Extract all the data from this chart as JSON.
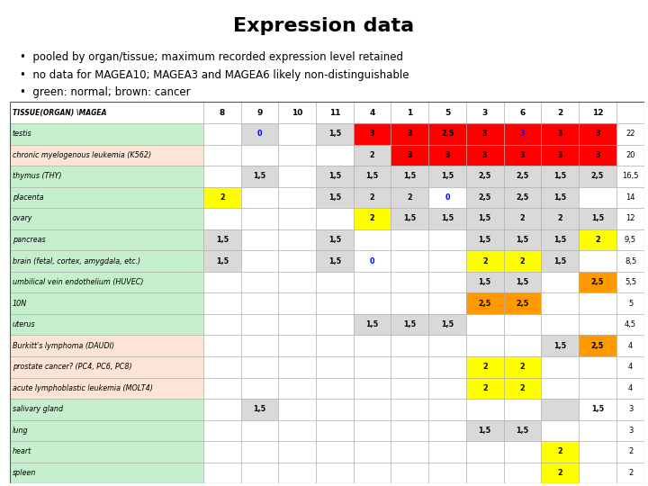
{
  "title": "Expression data",
  "bullets": [
    "pooled by organ/tissue; maximum recorded expression level retained",
    "no data for MAGEA10; MAGEA3 and MAGEA6 likely non-distinguishable",
    "green: normal; brown: cancer"
  ],
  "col_headers_label": "TISSUE(ORGAN) \\MAGEA",
  "data_cols": [
    "8",
    "9",
    "10",
    "11",
    "4",
    "1",
    "5",
    "3",
    "6",
    "2",
    "12"
  ],
  "rows": [
    {
      "tissue": "testis",
      "bg": "#c6efce",
      "values": {
        "8": null,
        "9": "0",
        "10": null,
        "11": "1,5",
        "4": "3",
        "1": "3",
        "5": "2,5",
        "3": "3",
        "6": "3",
        "2": "3",
        "12": "3"
      },
      "cell_colors": {
        "9": "#d9d9d9",
        "11": "#d9d9d9",
        "4": "#ff0000",
        "1": "#ff0000",
        "5": "#ff0000",
        "3": "#ff0000",
        "6": "#ff0000",
        "2": "#ff0000",
        "12": "#ff0000"
      },
      "cell_text_colors": {
        "9": "#0000ff",
        "6": "#0000ff"
      },
      "sum": "22"
    },
    {
      "tissue": "chronic myelogenous leukemia (K562)",
      "bg": "#fce4d6",
      "values": {
        "8": null,
        "9": null,
        "10": null,
        "11": null,
        "4": "2",
        "1": "3",
        "5": "3",
        "3": "3",
        "6": "3",
        "2": "3",
        "12": "3"
      },
      "cell_colors": {
        "4": "#d9d9d9",
        "1": "#ff0000",
        "5": "#ff0000",
        "3": "#ff0000",
        "6": "#ff0000",
        "2": "#ff0000",
        "12": "#ff0000"
      },
      "cell_text_colors": {},
      "sum": "20"
    },
    {
      "tissue": "thymus (THY)",
      "bg": "#c6efce",
      "values": {
        "8": null,
        "9": "1,5",
        "10": null,
        "11": "1,5",
        "4": "1,5",
        "1": "1,5",
        "5": "1,5",
        "3": "2,5",
        "6": "2,5",
        "2": "1,5",
        "12": "2,5"
      },
      "cell_colors": {
        "9": "#d9d9d9",
        "11": "#d9d9d9",
        "4": "#d9d9d9",
        "1": "#d9d9d9",
        "5": "#d9d9d9",
        "3": "#d9d9d9",
        "6": "#d9d9d9",
        "2": "#d9d9d9",
        "12": "#d9d9d9"
      },
      "cell_text_colors": {},
      "sum": "16,5"
    },
    {
      "tissue": "placenta",
      "bg": "#c6efce",
      "values": {
        "8": "2",
        "9": null,
        "10": null,
        "11": "1,5",
        "4": "2",
        "1": "2",
        "5": "0",
        "3": "2,5",
        "6": "2,5",
        "2": "1,5",
        "12": null
      },
      "cell_colors": {
        "8": "#ffff00",
        "11": "#d9d9d9",
        "4": "#d9d9d9",
        "1": "#d9d9d9",
        "3": "#d9d9d9",
        "6": "#d9d9d9",
        "2": "#d9d9d9"
      },
      "cell_text_colors": {
        "5": "#0000ff"
      },
      "sum": "14"
    },
    {
      "tissue": "ovary",
      "bg": "#c6efce",
      "values": {
        "8": null,
        "9": null,
        "10": null,
        "11": null,
        "4": "2",
        "1": "1,5",
        "5": "1,5",
        "3": "1,5",
        "6": "2",
        "2": "2",
        "12": "1,5"
      },
      "cell_colors": {
        "4": "#ffff00",
        "1": "#d9d9d9",
        "5": "#d9d9d9",
        "3": "#d9d9d9",
        "6": "#d9d9d9",
        "2": "#d9d9d9",
        "12": "#d9d9d9"
      },
      "cell_text_colors": {},
      "sum": "12"
    },
    {
      "tissue": "pancreas",
      "bg": "#c6efce",
      "values": {
        "8": "1,5",
        "9": null,
        "10": null,
        "11": "1,5",
        "4": null,
        "1": null,
        "5": null,
        "3": "1,5",
        "6": "1,5",
        "2": "1,5",
        "12": "2"
      },
      "cell_colors": {
        "8": "#d9d9d9",
        "11": "#d9d9d9",
        "3": "#d9d9d9",
        "6": "#d9d9d9",
        "2": "#d9d9d9",
        "12": "#ffff00"
      },
      "cell_text_colors": {},
      "sum": "9,5"
    },
    {
      "tissue": "brain (fetal, cortex, amygdala, etc.)",
      "bg": "#c6efce",
      "values": {
        "8": "1,5",
        "9": null,
        "10": null,
        "11": "1,5",
        "4": "0",
        "1": null,
        "5": null,
        "3": "2",
        "6": "2",
        "2": "1,5",
        "12": null
      },
      "cell_colors": {
        "8": "#d9d9d9",
        "11": "#d9d9d9",
        "3": "#ffff00",
        "6": "#ffff00",
        "2": "#d9d9d9"
      },
      "cell_text_colors": {
        "4": "#0000ff"
      },
      "sum": "8,5"
    },
    {
      "tissue": "umbilical vein endothelium (HUVEC)",
      "bg": "#c6efce",
      "values": {
        "8": null,
        "9": null,
        "10": null,
        "11": null,
        "4": null,
        "1": null,
        "5": null,
        "3": "1,5",
        "6": "1,5",
        "2": null,
        "12": "2,5"
      },
      "cell_colors": {
        "3": "#d9d9d9",
        "6": "#d9d9d9",
        "12": "#ff9900"
      },
      "cell_text_colors": {},
      "sum": "5,5"
    },
    {
      "tissue": "10N",
      "bg": "#c6efce",
      "values": {
        "8": null,
        "9": null,
        "10": null,
        "11": null,
        "4": null,
        "1": null,
        "5": null,
        "3": "2,5",
        "6": "2,5",
        "2": null,
        "12": null
      },
      "cell_colors": {
        "3": "#ff9900",
        "6": "#ff9900"
      },
      "cell_text_colors": {},
      "sum": "5"
    },
    {
      "tissue": "uterus",
      "bg": "#c6efce",
      "values": {
        "8": null,
        "9": null,
        "10": null,
        "11": null,
        "4": "1,5",
        "1": "1,5",
        "5": "1,5",
        "3": null,
        "6": null,
        "2": null,
        "12": null
      },
      "cell_colors": {
        "4": "#d9d9d9",
        "1": "#d9d9d9",
        "5": "#d9d9d9"
      },
      "cell_text_colors": {},
      "sum": "4,5"
    },
    {
      "tissue": "Burkitt's lymphoma (DAUDI)",
      "bg": "#fce4d6",
      "values": {
        "8": null,
        "9": null,
        "10": null,
        "11": null,
        "4": null,
        "1": null,
        "5": null,
        "3": null,
        "6": null,
        "2": "1,5",
        "12": "2,5"
      },
      "cell_colors": {
        "2": "#d9d9d9",
        "12": "#ff9900"
      },
      "cell_text_colors": {},
      "sum": "4"
    },
    {
      "tissue": "prostate cancer? (PC4, PC6, PC8)",
      "bg": "#fce4d6",
      "values": {
        "8": null,
        "9": null,
        "10": null,
        "11": null,
        "4": null,
        "1": null,
        "5": null,
        "3": "2",
        "6": "2",
        "2": null,
        "12": null
      },
      "cell_colors": {
        "3": "#ffff00",
        "6": "#ffff00"
      },
      "cell_text_colors": {},
      "sum": "4"
    },
    {
      "tissue": "acute lymphoblastic leukemia (MOLT4)",
      "bg": "#fce4d6",
      "values": {
        "8": null,
        "9": null,
        "10": null,
        "11": null,
        "4": null,
        "1": null,
        "5": null,
        "3": "2",
        "6": "2",
        "2": null,
        "12": null
      },
      "cell_colors": {
        "3": "#ffff00",
        "6": "#ffff00"
      },
      "cell_text_colors": {},
      "sum": "4"
    },
    {
      "tissue": "salivary gland",
      "bg": "#c6efce",
      "values": {
        "8": null,
        "9": "1,5",
        "10": null,
        "11": null,
        "4": null,
        "1": null,
        "5": null,
        "3": null,
        "6": null,
        "2": null,
        "12": "1,5"
      },
      "cell_colors": {
        "9": "#d9d9d9",
        "2": "#d9d9d9"
      },
      "cell_text_colors": {},
      "sum": "3"
    },
    {
      "tissue": "lung",
      "bg": "#c6efce",
      "values": {
        "8": null,
        "9": null,
        "10": null,
        "11": null,
        "4": null,
        "1": null,
        "5": null,
        "3": "1,5",
        "6": "1,5",
        "2": null,
        "12": null
      },
      "cell_colors": {
        "3": "#d9d9d9",
        "6": "#d9d9d9"
      },
      "cell_text_colors": {},
      "sum": "3"
    },
    {
      "tissue": "heart",
      "bg": "#c6efce",
      "values": {
        "8": null,
        "9": null,
        "10": null,
        "11": null,
        "4": null,
        "1": null,
        "5": null,
        "3": null,
        "6": null,
        "2": "2",
        "12": null
      },
      "cell_colors": {
        "2": "#ffff00"
      },
      "cell_text_colors": {},
      "sum": "2"
    },
    {
      "tissue": "spleen",
      "bg": "#c6efce",
      "values": {
        "8": null,
        "9": null,
        "10": null,
        "11": null,
        "4": null,
        "1": null,
        "5": null,
        "3": null,
        "6": null,
        "2": "2",
        "12": null
      },
      "cell_colors": {
        "2": "#ffff00"
      },
      "cell_text_colors": {},
      "sum": "2"
    }
  ]
}
